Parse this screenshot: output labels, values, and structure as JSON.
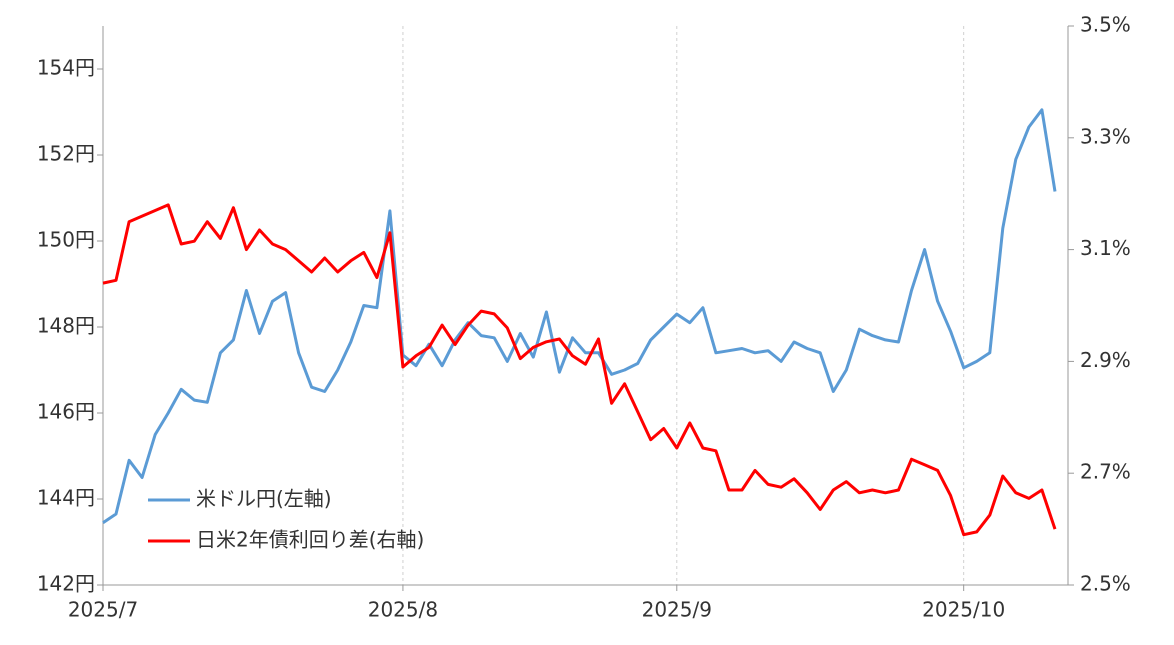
{
  "chart_data": {
    "type": "line",
    "categories": [
      "2025/7",
      null,
      null,
      null,
      null,
      null,
      null,
      null,
      null,
      null,
      null,
      null,
      null,
      null,
      null,
      null,
      null,
      null,
      null,
      null,
      null,
      null,
      null,
      "2025/8",
      null,
      null,
      null,
      null,
      null,
      null,
      null,
      null,
      null,
      null,
      null,
      null,
      null,
      null,
      null,
      null,
      null,
      null,
      null,
      null,
      "2025/9",
      null,
      null,
      null,
      null,
      null,
      null,
      null,
      null,
      null,
      null,
      null,
      null,
      null,
      null,
      null,
      null,
      null,
      null,
      null,
      null,
      null,
      "2025/10",
      null,
      null,
      null,
      null,
      null,
      null,
      null
    ],
    "series": [
      {
        "name": "米ドル円(左軸)",
        "color": "#5b9bd5",
        "axis": "y",
        "values": [
          143.45,
          143.65,
          144.9,
          144.5,
          145.5,
          146.0,
          146.55,
          146.3,
          146.25,
          147.4,
          147.7,
          148.85,
          147.85,
          148.6,
          148.8,
          147.4,
          146.6,
          146.5,
          147.0,
          147.65,
          148.5,
          148.45,
          150.7,
          147.35,
          147.1,
          147.6,
          147.1,
          147.7,
          148.1,
          147.8,
          147.75,
          147.2,
          147.85,
          147.3,
          148.35,
          146.95,
          147.75,
          147.4,
          147.4,
          146.9,
          147.0,
          147.15,
          147.7,
          148.0,
          148.3,
          148.1,
          148.45,
          147.4,
          147.45,
          147.5,
          147.4,
          147.45,
          147.2,
          147.65,
          147.5,
          147.4,
          146.5,
          147.0,
          147.95,
          147.8,
          147.7,
          147.65,
          148.85,
          149.8,
          148.6,
          147.9,
          147.05,
          147.2,
          147.4,
          150.3,
          151.9,
          152.65,
          153.05,
          151.15
        ]
      },
      {
        "name": "日米2年債利回り差(右軸)",
        "color": "#ff0000",
        "axis": "y2",
        "values": [
          3.04,
          3.045,
          3.15,
          3.16,
          3.17,
          3.18,
          3.11,
          3.115,
          3.15,
          3.12,
          3.175,
          3.1,
          3.135,
          3.11,
          3.1,
          3.08,
          3.06,
          3.085,
          3.06,
          3.08,
          3.095,
          3.05,
          3.13,
          2.89,
          2.91,
          2.925,
          2.965,
          2.93,
          2.965,
          2.99,
          2.985,
          2.96,
          2.905,
          2.925,
          2.935,
          2.94,
          2.91,
          2.895,
          2.94,
          2.825,
          2.86,
          2.81,
          2.76,
          2.78,
          2.745,
          2.79,
          2.745,
          2.74,
          2.67,
          2.67,
          2.705,
          2.68,
          2.675,
          2.69,
          2.665,
          2.635,
          2.67,
          2.685,
          2.665,
          2.67,
          2.665,
          2.67,
          2.725,
          2.715,
          2.705,
          2.66,
          2.59,
          2.595,
          2.625,
          2.695,
          2.665,
          2.655,
          2.67,
          2.6
        ]
      }
    ],
    "ylim": [
      142,
      155
    ],
    "yticks": [
      {
        "value": 142,
        "label": "142円"
      },
      {
        "value": 144,
        "label": "144円"
      },
      {
        "value": 146,
        "label": "146円"
      },
      {
        "value": 148,
        "label": "148円"
      },
      {
        "value": 150,
        "label": "150円"
      },
      {
        "value": 152,
        "label": "152円"
      },
      {
        "value": 154,
        "label": "154円"
      }
    ],
    "y2lim": [
      2.5,
      3.5
    ],
    "y2ticks": [
      {
        "value": 2.5,
        "label": "2.5%"
      },
      {
        "value": 2.7,
        "label": "2.7%"
      },
      {
        "value": 2.9,
        "label": "2.9%"
      },
      {
        "value": 3.1,
        "label": "3.1%"
      },
      {
        "value": 3.3,
        "label": "3.3%"
      },
      {
        "value": 3.5,
        "label": "3.5%"
      }
    ],
    "grid": true,
    "legend": "lower left"
  }
}
